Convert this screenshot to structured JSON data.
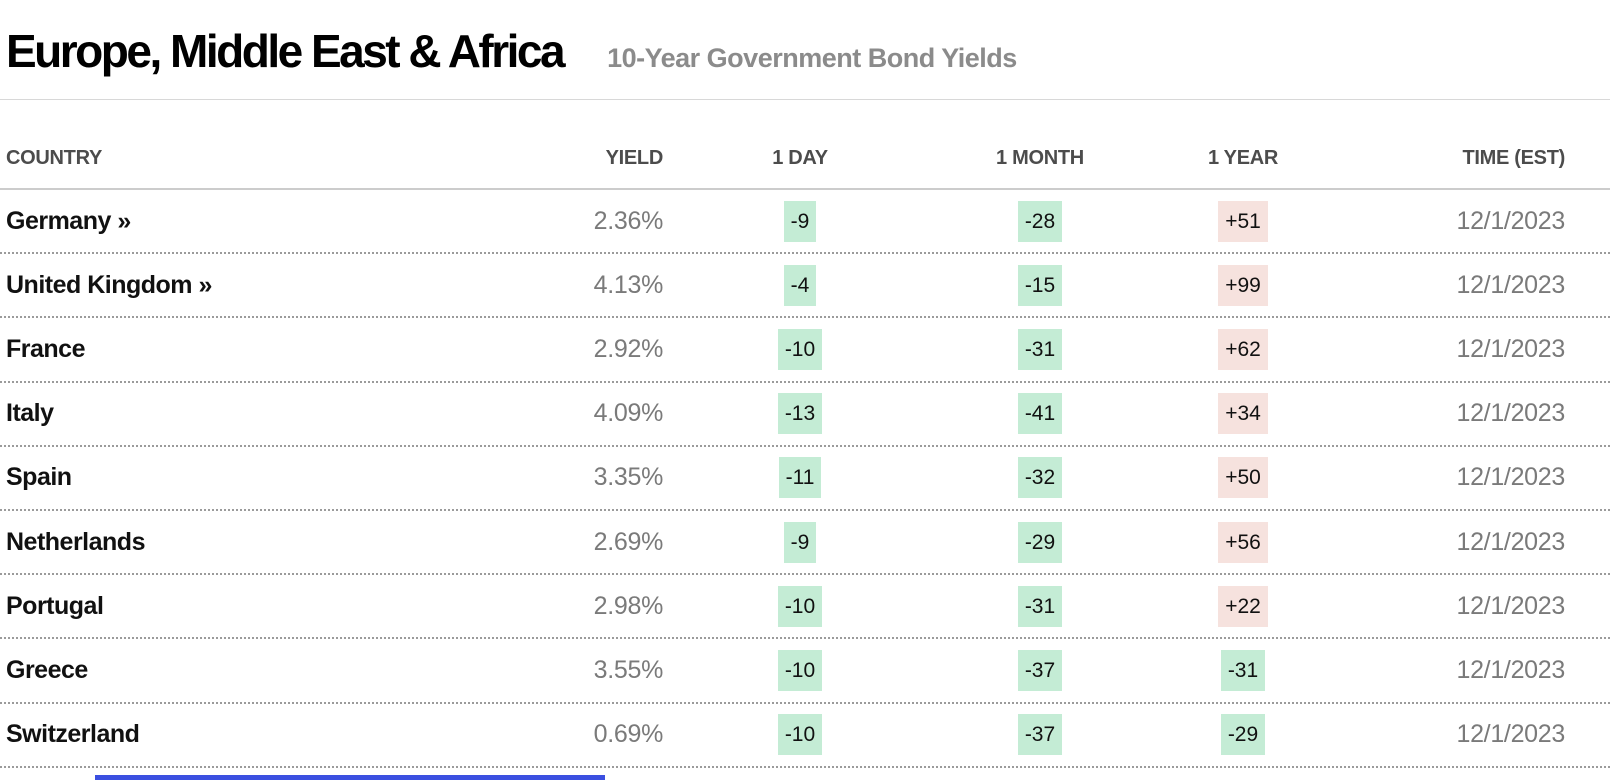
{
  "header": {
    "title": "Europe, Middle East & Africa",
    "subtitle": "10-Year Government Bond Yields"
  },
  "table": {
    "columns": [
      "COUNTRY",
      "YIELD",
      "1 DAY",
      "1 MONTH",
      "1 YEAR",
      "TIME (EST)"
    ],
    "rows": [
      {
        "country": "Germany »",
        "yield": "2.36%",
        "day": "-9",
        "month": "-28",
        "year": "+51",
        "time": "12/1/2023"
      },
      {
        "country": "United Kingdom »",
        "yield": "4.13%",
        "day": "-4",
        "month": "-15",
        "year": "+99",
        "time": "12/1/2023"
      },
      {
        "country": "France",
        "yield": "2.92%",
        "day": "-10",
        "month": "-31",
        "year": "+62",
        "time": "12/1/2023"
      },
      {
        "country": "Italy",
        "yield": "4.09%",
        "day": "-13",
        "month": "-41",
        "year": "+34",
        "time": "12/1/2023"
      },
      {
        "country": "Spain",
        "yield": "3.35%",
        "day": "-11",
        "month": "-32",
        "year": "+50",
        "time": "12/1/2023"
      },
      {
        "country": "Netherlands",
        "yield": "2.69%",
        "day": "-9",
        "month": "-29",
        "year": "+56",
        "time": "12/1/2023"
      },
      {
        "country": "Portugal",
        "yield": "2.98%",
        "day": "-10",
        "month": "-31",
        "year": "+22",
        "time": "12/1/2023"
      },
      {
        "country": "Greece",
        "yield": "3.55%",
        "day": "-10",
        "month": "-37",
        "year": "-31",
        "time": "12/1/2023"
      },
      {
        "country": "Switzerland",
        "yield": "0.69%",
        "day": "-10",
        "month": "-37",
        "year": "-29",
        "time": "12/1/2023"
      }
    ]
  },
  "colors": {
    "negative_badge_bg": "#c4ecd5",
    "positive_badge_bg": "#f6e2de",
    "muted_text": "#7a7a7a",
    "subtitle_text": "#8b8b8b",
    "partial_bottom_bar": "#3b4fe0"
  }
}
